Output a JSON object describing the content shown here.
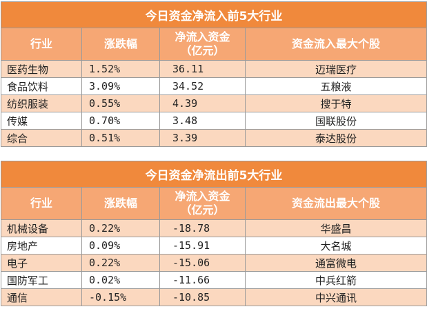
{
  "inflow": {
    "title": "今日资金净流入前5大行业",
    "headers": [
      "行业",
      "涨跌幅",
      "净流入资金\n（亿元）",
      "资金流入最大个股"
    ],
    "header_line1": "净流入资金",
    "header_line2": "（亿元）",
    "rows": [
      {
        "industry": "医药生物",
        "change": "1.52%",
        "amount": "36.11",
        "stock": "迈瑞医疗"
      },
      {
        "industry": "食品饮料",
        "change": "3.09%",
        "amount": "34.52",
        "stock": "五粮液"
      },
      {
        "industry": "纺织服装",
        "change": "0.55%",
        "amount": "4.39",
        "stock": "搜于特"
      },
      {
        "industry": "传媒",
        "change": "0.70%",
        "amount": "3.48",
        "stock": "国联股份"
      },
      {
        "industry": "综合",
        "change": "0.51%",
        "amount": "3.39",
        "stock": "泰达股份"
      }
    ],
    "col1": "行业",
    "col2": "涨跌幅",
    "col4": "资金流入最大个股"
  },
  "outflow": {
    "title": "今日资金净流出前5大行业",
    "header_line1": "净流入资金",
    "header_line2": "（亿元）",
    "rows": [
      {
        "industry": "机械设备",
        "change": "0.22%",
        "amount": "-18.78",
        "stock": "华盛昌"
      },
      {
        "industry": "房地产",
        "change": "0.09%",
        "amount": "-15.91",
        "stock": "大名城"
      },
      {
        "industry": "电子",
        "change": "0.22%",
        "amount": "-15.06",
        "stock": "通富微电"
      },
      {
        "industry": "国防军工",
        "change": "0.02%",
        "amount": "-11.66",
        "stock": "中兵红箭"
      },
      {
        "industry": "通信",
        "change": "-0.15%",
        "amount": "-10.85",
        "stock": "中兴通讯"
      }
    ],
    "col1": "行业",
    "col2": "涨跌幅",
    "col4": "资金流出最大个股"
  },
  "colors": {
    "title_bg": "#f0893c",
    "header_bg": "#f6a774",
    "odd_row_bg": "#fbd8bf"
  }
}
